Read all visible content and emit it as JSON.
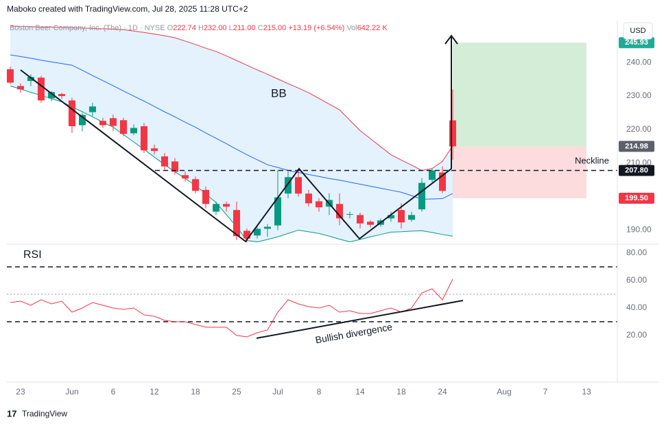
{
  "header": {
    "credit": "Maboko created with TradingView.com, Jul 28, 2025 11:28 UTC+2",
    "currency": "USD",
    "brand": "TradingView"
  },
  "chart_data": [
    {
      "type": "candlestick",
      "title": "Boston Beer Company, Inc. (The) · 1D · NYSE",
      "legend": {
        "open_label": "O",
        "open": "222.74",
        "high_label": "H",
        "high": "232.00",
        "low_label": "L",
        "low": "211.00",
        "close_label": "C",
        "close": "215.00",
        "change": "+13.19 (+6.54%)",
        "volume_label": "Vol",
        "volume": "642.22 K"
      },
      "up_color": "#089981",
      "down_color": "#f23645",
      "open": [
        238,
        233,
        234.5,
        235.5,
        229.3,
        230.6,
        228.7,
        221.3,
        225.2,
        222.6,
        223.4,
        222.8,
        218.9,
        221,
        214.4,
        212,
        210.5,
        206.4,
        205.2,
        202,
        195.5,
        197.8,
        196,
        189.8,
        188.4,
        190.4,
        191.4,
        200.9,
        205.8,
        200.9,
        198.6,
        197,
        197.8,
        194.6,
        194.5,
        192.5,
        191.6,
        193.5,
        196,
        193.1,
        196.2,
        205,
        207.2,
        222.74
      ],
      "high": [
        238.8,
        233.8,
        236.5,
        236,
        231.5,
        231,
        229.5,
        225,
        228,
        223.5,
        224.5,
        223.5,
        221.5,
        222,
        215.5,
        213,
        211.5,
        207.5,
        206,
        203,
        198.5,
        198.5,
        198.5,
        190.5,
        191,
        191.8,
        208,
        207.5,
        208,
        202,
        199.5,
        201,
        201,
        195.5,
        195.2,
        193,
        193.5,
        195.5,
        198,
        195.5,
        205.5,
        208.5,
        209,
        232
      ],
      "low": [
        233.6,
        231,
        233,
        228,
        228.5,
        229.2,
        219,
        219.5,
        224,
        220.5,
        219.5,
        218,
        218.3,
        213,
        212.5,
        208,
        206.5,
        204.5,
        201,
        196.5,
        194.5,
        195.5,
        187,
        186.3,
        187.5,
        188,
        190,
        199.5,
        200,
        197,
        195.5,
        194.5,
        191.5,
        193.5,
        190.5,
        190.8,
        191,
        192.5,
        190.5,
        192.5,
        195.5,
        204,
        201,
        211
      ],
      "close": [
        234,
        232,
        235.7,
        228.7,
        231.2,
        230,
        221,
        224.4,
        226.9,
        221.3,
        221.1,
        218.7,
        220.5,
        213.8,
        213.6,
        209,
        207.4,
        205.4,
        201.7,
        197.8,
        197.8,
        197,
        188.2,
        187.5,
        190.4,
        191,
        199.8,
        205.8,
        200.9,
        198,
        196.8,
        199,
        193.5,
        194.8,
        192,
        191.6,
        192.9,
        194.5,
        192.3,
        194.5,
        204.1,
        207.8,
        201.7,
        215
      ],
      "bands": [
        {
          "color": "#f23645",
          "values": [
            250.9,
            250.8,
            250.7,
            250.6,
            250.6,
            250.5,
            250.4,
            250.3,
            250.2,
            250.1,
            250,
            249.8,
            249.4,
            249,
            248.5,
            248,
            247.4,
            246.4,
            245.4,
            244.3,
            243.3,
            242,
            240.6,
            239.2,
            237.8,
            236.5,
            235.1,
            233.7,
            232.4,
            231,
            229.3,
            227.6,
            225.9,
            222.8,
            219.7,
            217.3,
            214.9,
            212.5,
            210.9,
            209.4,
            207.8,
            208.4,
            210.5,
            215.2
          ]
        },
        {
          "color": "#2962ff",
          "values": [
            242.3,
            241.8,
            241.3,
            240.7,
            240.2,
            239.7,
            239.2,
            237.7,
            236.1,
            234.6,
            233.1,
            231.5,
            230,
            228.5,
            226.9,
            225.3,
            223.8,
            222.2,
            220.7,
            219,
            217.4,
            215.8,
            214.1,
            212.5,
            211,
            209.5,
            208.7,
            207.8,
            207.2,
            206.6,
            206,
            205.4,
            204.9,
            204.3,
            203.7,
            203.1,
            202.5,
            201.9,
            201.3,
            200.3,
            199.2,
            199.3,
            199.4,
            200.9
          ]
        },
        {
          "color": "#089981",
          "values": [
            233,
            232.1,
            231.1,
            230.2,
            229.2,
            228.3,
            226.8,
            225.3,
            223.8,
            222.2,
            220.7,
            218.5,
            216.3,
            214.1,
            211.8,
            209.5,
            207.4,
            205.4,
            203.3,
            200.8,
            198.2,
            194.6,
            191,
            186.9,
            186.5,
            187.2,
            188,
            189,
            190,
            189.5,
            189,
            188.2,
            187.3,
            186.5,
            187.2,
            188,
            188.7,
            189.4,
            189.5,
            189.7,
            189.8,
            189.3,
            188.7,
            188.2
          ]
        }
      ],
      "band_fill": "#e3f2fd",
      "bb_label": "BB",
      "neckline": {
        "label": "Neckline",
        "price": {
          "value": 207.8,
          "label": "207.80"
        }
      },
      "position": {
        "target": 245.93,
        "entry": 214.98,
        "stop": {
          "value": 199.5,
          "label": "199.50"
        }
      },
      "xlim": [
        -0.33,
        59
      ],
      "xticks": [
        {
          "value": 1,
          "label": "23"
        },
        {
          "value": 6,
          "label": "Jun"
        },
        {
          "value": 10,
          "label": "6"
        },
        {
          "value": 14,
          "label": "12"
        },
        {
          "value": 18,
          "label": "18"
        },
        {
          "value": 22,
          "label": "25"
        },
        {
          "value": 26,
          "label": "Jul"
        },
        {
          "value": 30,
          "label": "8"
        },
        {
          "value": 34,
          "label": "14"
        },
        {
          "value": 38,
          "label": "18"
        },
        {
          "value": 42,
          "label": "24"
        },
        {
          "value": 48,
          "label": "Aug"
        },
        {
          "value": 52,
          "label": "7"
        },
        {
          "value": 56,
          "label": "13"
        }
      ],
      "ylim": [
        186,
        251.5
      ],
      "yticks": [
        {
          "value": 190,
          "label": "190.00"
        },
        {
          "value": 200,
          "label": "200.00"
        },
        {
          "value": 210,
          "label": "210.00"
        },
        {
          "value": 220,
          "label": "220.00"
        },
        {
          "value": 230,
          "label": "230.00"
        },
        {
          "value": 240,
          "label": "240.00"
        }
      ]
    },
    {
      "type": "line",
      "title": "RSI",
      "annotation": "Bullish divergence",
      "series": [
        {
          "color": "#f23645",
          "values": [
            44,
            45,
            42,
            46,
            43,
            45,
            37,
            40,
            44,
            42,
            40,
            39,
            40,
            35,
            34,
            31,
            30,
            30,
            28,
            26,
            26,
            26,
            20,
            19,
            22,
            24,
            37,
            46,
            43,
            41,
            40,
            42,
            37,
            38,
            36,
            36,
            38,
            40,
            37,
            40,
            51,
            54,
            46,
            61
          ]
        }
      ],
      "levels": [
        {
          "value": 70,
          "style": "dashed"
        },
        {
          "value": 50,
          "style": "dotted"
        },
        {
          "value": 30,
          "style": "dashed"
        }
      ],
      "xlim": [
        -0.33,
        59
      ],
      "ylim": [
        -13,
        86
      ],
      "yticks": [
        {
          "value": 20,
          "label": "20.00"
        },
        {
          "value": 40,
          "label": "40.00"
        },
        {
          "value": 60,
          "label": "60.00"
        },
        {
          "value": 80,
          "label": "80.00"
        }
      ]
    }
  ]
}
